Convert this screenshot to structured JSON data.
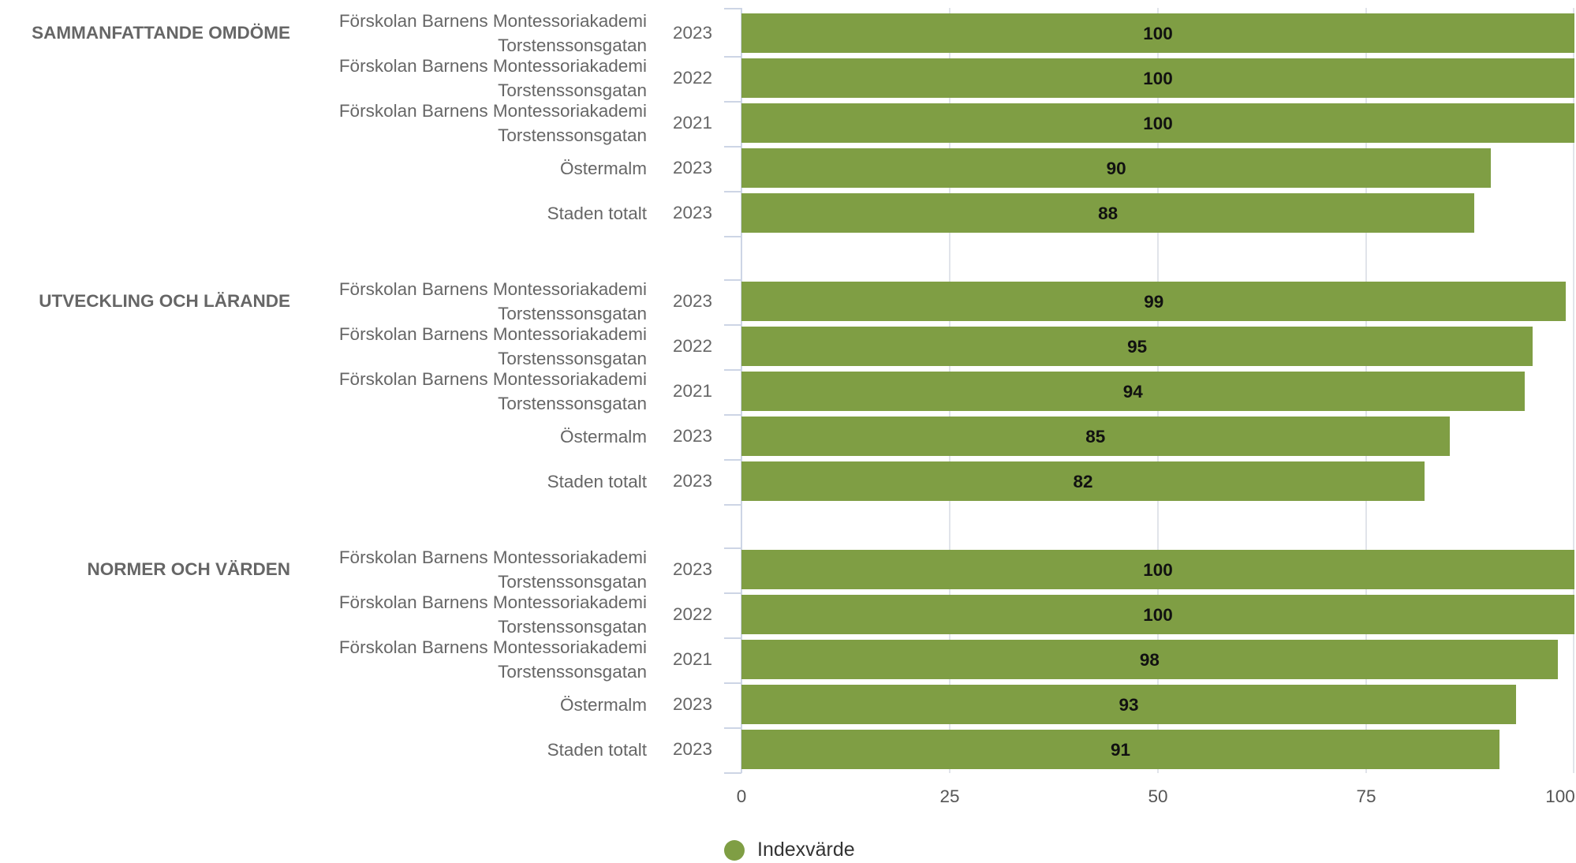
{
  "chart_data": {
    "type": "bar",
    "orientation": "horizontal",
    "series": [
      {
        "name": "Indexvärde",
        "color": "#7f9e44"
      }
    ],
    "groups": [
      {
        "label": "SAMMANFATTANDE OMDÖME",
        "rows": [
          {
            "category": "Förskolan Barnens Montessoriakademi Torstenssonsgatan",
            "year": "2023",
            "value": 100
          },
          {
            "category": "Förskolan Barnens Montessoriakademi Torstenssonsgatan",
            "year": "2022",
            "value": 100
          },
          {
            "category": "Förskolan Barnens Montessoriakademi Torstenssonsgatan",
            "year": "2021",
            "value": 100
          },
          {
            "category": "Östermalm",
            "year": "2023",
            "value": 90
          },
          {
            "category": "Staden totalt",
            "year": "2023",
            "value": 88
          }
        ]
      },
      {
        "label": "UTVECKLING OCH LÄRANDE",
        "rows": [
          {
            "category": "Förskolan Barnens Montessoriakademi Torstenssonsgatan",
            "year": "2023",
            "value": 99
          },
          {
            "category": "Förskolan Barnens Montessoriakademi Torstenssonsgatan",
            "year": "2022",
            "value": 95
          },
          {
            "category": "Förskolan Barnens Montessoriakademi Torstenssonsgatan",
            "year": "2021",
            "value": 94
          },
          {
            "category": "Östermalm",
            "year": "2023",
            "value": 85
          },
          {
            "category": "Staden totalt",
            "year": "2023",
            "value": 82
          }
        ]
      },
      {
        "label": "NORMER OCH VÄRDEN",
        "rows": [
          {
            "category": "Förskolan Barnens Montessoriakademi Torstenssonsgatan",
            "year": "2023",
            "value": 100
          },
          {
            "category": "Förskolan Barnens Montessoriakademi Torstenssonsgatan",
            "year": "2022",
            "value": 100
          },
          {
            "category": "Förskolan Barnens Montessoriakademi Torstenssonsgatan",
            "year": "2021",
            "value": 98
          },
          {
            "category": "Östermalm",
            "year": "2023",
            "value": 93
          },
          {
            "category": "Staden totalt",
            "year": "2023",
            "value": 91
          }
        ]
      }
    ],
    "xlim": [
      0,
      100
    ],
    "xticks": [
      "0",
      "25",
      "50",
      "75",
      "100"
    ],
    "grid": true,
    "legend_position": "bottom-center",
    "data_labels": true
  }
}
